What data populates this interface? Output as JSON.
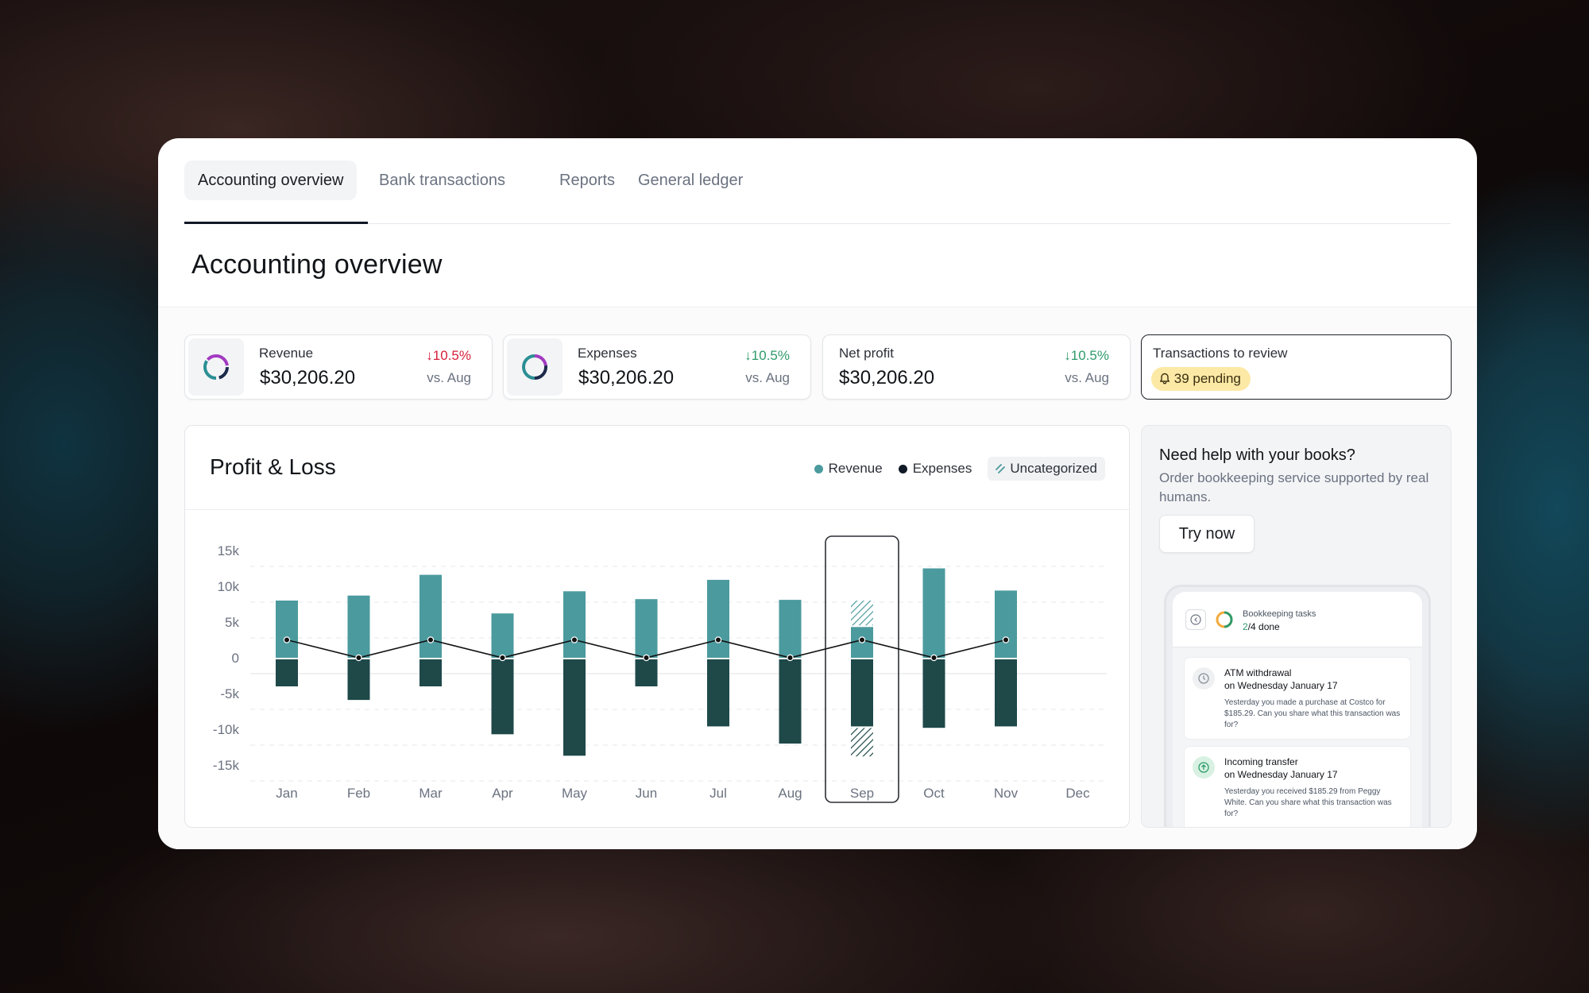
{
  "tabs": [
    {
      "label": "Accounting overview",
      "active": true
    },
    {
      "label": "Bank transactions",
      "active": false
    },
    {
      "label": "Reports",
      "active": false
    },
    {
      "label": "General ledger",
      "active": false
    }
  ],
  "page_title": "Accounting overview",
  "kpis": {
    "revenue": {
      "label": "Revenue",
      "value": "$30,206.20",
      "delta": "10.5%",
      "delta_direction": "down",
      "delta_color": "#d6203b",
      "comparison": "vs. Aug"
    },
    "expenses": {
      "label": "Expenses",
      "value": "$30,206.20",
      "delta": "10.5%",
      "delta_direction": "down",
      "delta_color": "#2e9b6b",
      "comparison": "vs. Aug"
    },
    "net_profit": {
      "label": "Net profit",
      "value": "$30,206.20",
      "delta": "10.5%",
      "delta_direction": "down",
      "delta_color": "#2e9b6b",
      "comparison": "vs. Aug"
    },
    "review": {
      "label": "Transactions to review",
      "badge": "39 pending",
      "badge_icon": "bell-icon"
    }
  },
  "pl": {
    "title": "Profit & Loss",
    "legend": {
      "revenue": "Revenue",
      "expenses": "Expenses",
      "uncategorized": "Uncategorized"
    }
  },
  "chart_data": {
    "type": "bar",
    "categories": [
      "Jan",
      "Feb",
      "Mar",
      "Apr",
      "May",
      "Jun",
      "Jul",
      "Aug",
      "Sep",
      "Oct",
      "Nov",
      "Dec"
    ],
    "series": [
      {
        "name": "Revenue",
        "values": [
          8,
          8.7,
          11.6,
          6.2,
          9.3,
          8.2,
          10.9,
          8.1,
          4.3,
          12.5,
          9.4,
          null
        ]
      },
      {
        "name": "Expenses",
        "values": [
          -4,
          -5.9,
          -4,
          -10.7,
          -13.7,
          -4,
          -9.6,
          -12,
          -9.6,
          -9.8,
          -9.6,
          null
        ]
      },
      {
        "name": "Uncategorized",
        "values": [
          0,
          0,
          0,
          0,
          0,
          0,
          0,
          0,
          3.7,
          0,
          0,
          null
        ],
        "negative_values": [
          0,
          0,
          0,
          0,
          0,
          0,
          0,
          0,
          -4.2,
          0,
          0,
          null
        ]
      }
    ],
    "line": [
      2.5,
      0,
      2.5,
      0,
      2.5,
      0,
      2.5,
      0,
      2.5,
      0,
      2.5,
      null
    ],
    "yticks": [
      "15k",
      "10k",
      "5k",
      "0",
      "-5k",
      "-10k",
      "-15k"
    ],
    "ylim": [
      -16,
      16
    ],
    "highlighted_category": "Sep",
    "grid": true,
    "legend_position": "top-right",
    "colors": {
      "revenue": "#4b9a9e",
      "expenses": "#1f4849",
      "line": "#111111",
      "highlight_border": "#2b2f35"
    }
  },
  "help": {
    "title": "Need help with your books?",
    "description": "Order bookkeeping service supported by real humans.",
    "button": "Try now"
  },
  "phone": {
    "tasks_title": "Bookkeeping tasks",
    "tasks_done": "2",
    "tasks_total": "/4 done",
    "cards": [
      {
        "title": "ATM withdrawal",
        "subtitle": "on Wednesday January 17",
        "body": "Yesterday you made a purchase at Costco for $185.29. Can you share what this transaction was for?",
        "icon": "clock-icon"
      },
      {
        "title": "Incoming transfer",
        "subtitle": "on Wednesday January 17",
        "body": "Yesterday you received $185.29 from Peggy White. Can you share what this transaction was for?",
        "icon": "arrow-up-icon"
      }
    ]
  }
}
